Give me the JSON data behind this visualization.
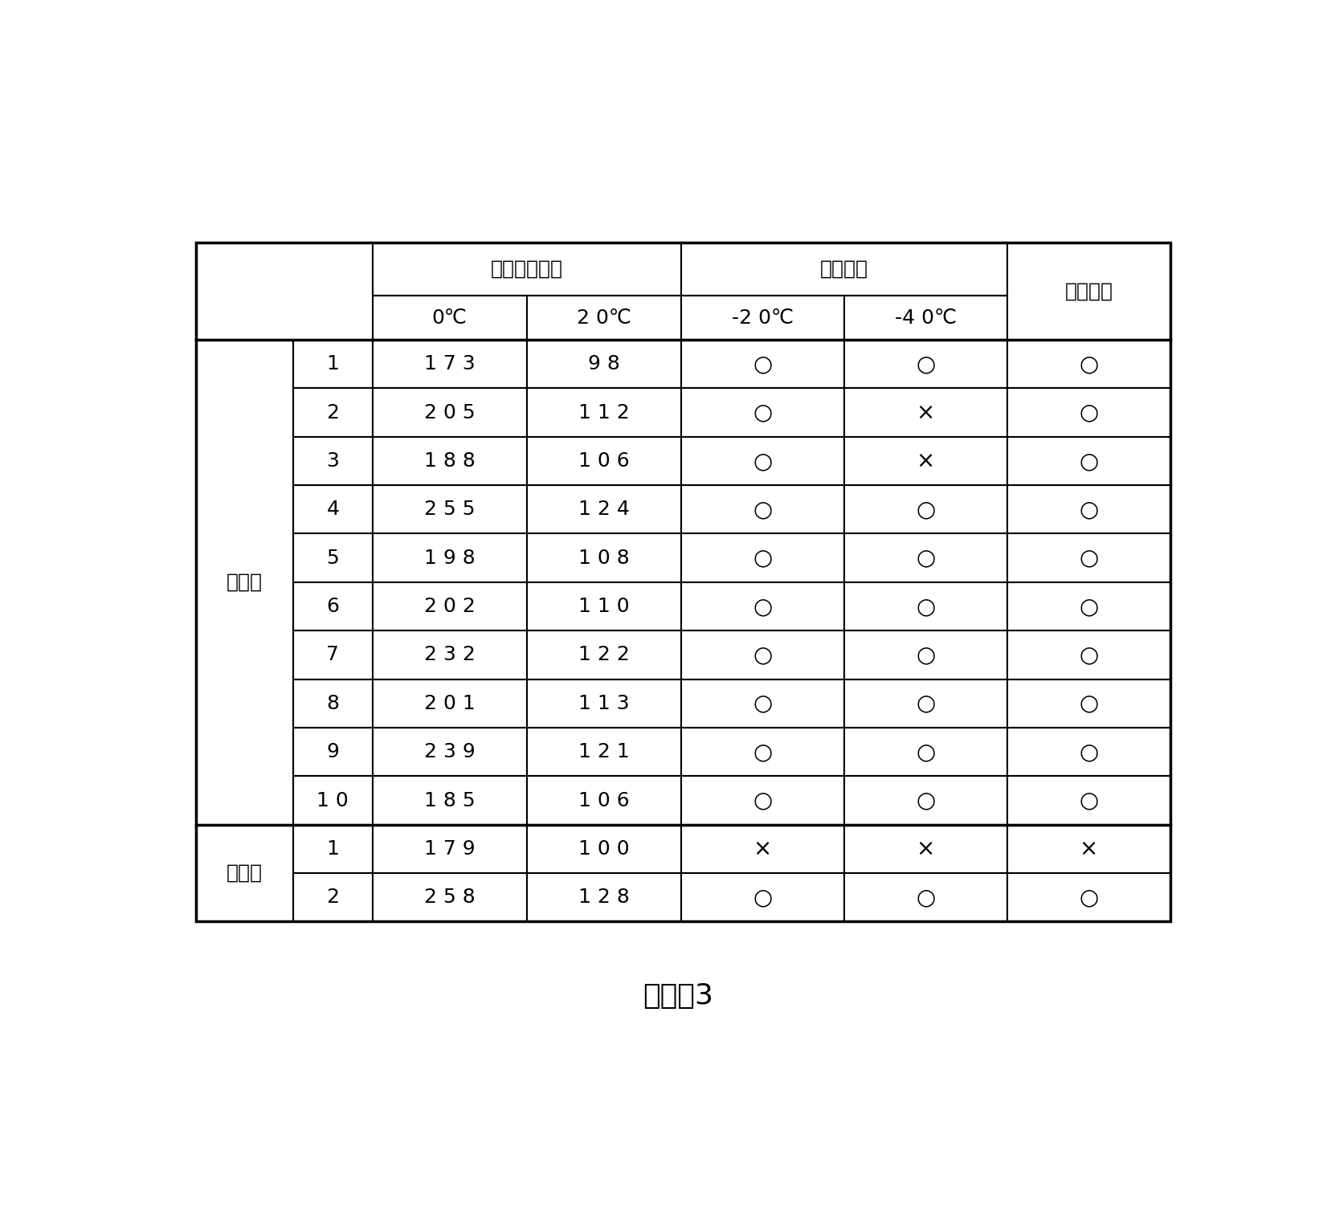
{
  "title": "图　　3",
  "group1_label": "实施例",
  "group2_label": "比较例",
  "header1_col23": "马达消耗电流",
  "header1_col45": "旋转启动",
  "header1_col6": "液面有无",
  "header2": [
    "0℃",
    "2 0℃",
    "-2 0℃",
    "-4 0℃"
  ],
  "rows_group1": [
    [
      "1",
      "1 7 3",
      "9 8",
      "○",
      "○",
      "○"
    ],
    [
      "2",
      "2 0 5",
      "1 1 2",
      "○",
      "×",
      "○"
    ],
    [
      "3",
      "1 8 8",
      "1 0 6",
      "○",
      "×",
      "○"
    ],
    [
      "4",
      "2 5 5",
      "1 2 4",
      "○",
      "○",
      "○"
    ],
    [
      "5",
      "1 9 8",
      "1 0 8",
      "○",
      "○",
      "○"
    ],
    [
      "6",
      "2 0 2",
      "1 1 0",
      "○",
      "○",
      "○"
    ],
    [
      "7",
      "2 3 2",
      "1 2 2",
      "○",
      "○",
      "○"
    ],
    [
      "8",
      "2 0 1",
      "1 1 3",
      "○",
      "○",
      "○"
    ],
    [
      "9",
      "2 3 9",
      "1 2 1",
      "○",
      "○",
      "○"
    ],
    [
      "1 0",
      "1 8 5",
      "1 0 6",
      "○",
      "○",
      "○"
    ]
  ],
  "rows_group2": [
    [
      "1",
      "1 7 9",
      "1 0 0",
      "×",
      "×",
      "×"
    ],
    [
      "2",
      "2 5 8",
      "1 2 8",
      "○",
      "○",
      "○"
    ]
  ],
  "bg_color": "#ffffff",
  "line_color": "#000000",
  "text_color": "#000000",
  "font_size_header": 18,
  "font_size_data": 18,
  "font_size_label": 18,
  "font_size_title": 26,
  "font_size_symbol": 20
}
